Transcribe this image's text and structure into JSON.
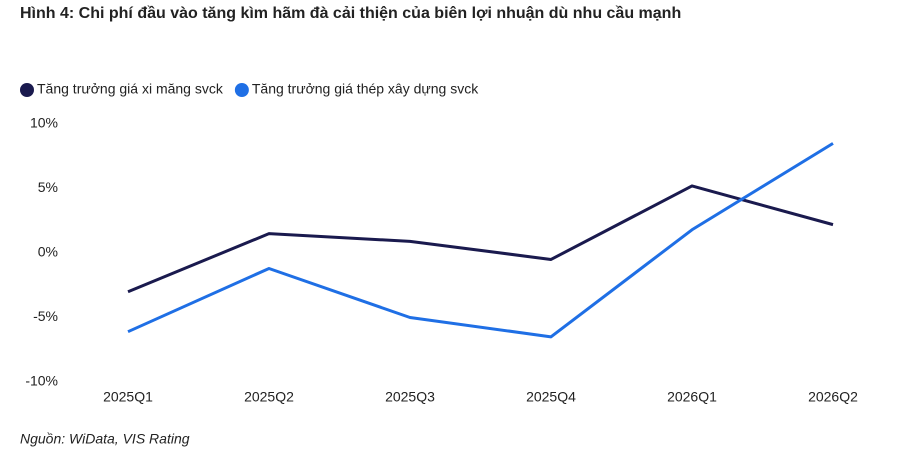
{
  "chart_data": {
    "type": "line",
    "title": "Hình 4: Chi phí đầu vào tăng kìm hãm đà cải thiện của biên lợi nhuận dù nhu cầu mạnh",
    "source": "Nguồn: WiData, VIS Rating",
    "categories": [
      "2025Q1",
      "2025Q2",
      "2025Q3",
      "2025Q4",
      "2026Q1",
      "2026Q2"
    ],
    "series": [
      {
        "name": "Tăng trưởng giá xi măng svck",
        "color": "#1a1a4e",
        "values": [
          -3.0,
          1.5,
          0.9,
          -0.5,
          5.2,
          2.2
        ]
      },
      {
        "name": "Tăng trưởng giá thép xây dựng svck",
        "color": "#1f6fe5",
        "values": [
          -6.1,
          -1.2,
          -5.0,
          -6.5,
          1.8,
          8.5
        ]
      }
    ],
    "ylim": [
      -10,
      10
    ],
    "yticks": [
      {
        "value": 10,
        "label": "10%"
      },
      {
        "value": 5,
        "label": "5%"
      },
      {
        "value": 0,
        "label": "0%"
      },
      {
        "value": -5,
        "label": "-5%"
      },
      {
        "value": -10,
        "label": "-10%"
      }
    ],
    "grid": false,
    "legend": "top-left"
  }
}
